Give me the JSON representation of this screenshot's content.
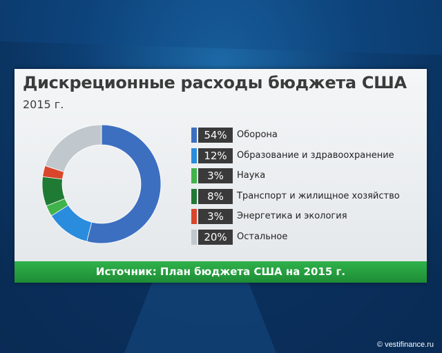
{
  "watermark": "© vestifinance.ru",
  "colors": {
    "defense": "#3d6fc0",
    "education": "#2a8cdd",
    "science": "#40b34a",
    "transport": "#1f7a34",
    "energy": "#d9462b",
    "other": "#c1c8cd",
    "footer": "#2fb24a"
  },
  "chart_data": {
    "type": "pie",
    "donut": true,
    "title": "Дискреционные расходы бюджета США",
    "subtitle": "2015 г.",
    "source": "Источник: План бюджета США на 2015 г.",
    "slices": [
      {
        "label": "Оборона",
        "value": 54,
        "display": "54%",
        "color": "#3d6fc0"
      },
      {
        "label": "Образование и здравоохранение",
        "value": 12,
        "display": "12%",
        "color": "#2a8cdd"
      },
      {
        "label": "Наука",
        "value": 3,
        "display": "3%",
        "color": "#40b34a"
      },
      {
        "label": "Транспорт и жилищное хозяйство",
        "value": 8,
        "display": "8%",
        "color": "#1f7a34"
      },
      {
        "label": "Энергетика и экология",
        "value": 3,
        "display": "3%",
        "color": "#d9462b"
      },
      {
        "label": "Остальное",
        "value": 20,
        "display": "20%",
        "color": "#c1c8cd"
      }
    ]
  }
}
